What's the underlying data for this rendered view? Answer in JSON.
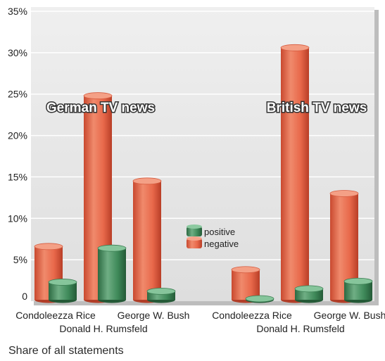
{
  "chart_data": {
    "type": "bar",
    "style": "3d-cylinder",
    "footer": "Share of all statements",
    "y_ticks": [
      "35%",
      "30%",
      "25%",
      "20%",
      "15%",
      "10%",
      "5%",
      "0"
    ],
    "ylim": [
      0,
      35
    ],
    "grid": true,
    "legend": {
      "placement": "center",
      "items": [
        "positive",
        "negative"
      ]
    },
    "colors": {
      "positive": "#3f8a5a",
      "negative": "#e8684a",
      "background": "#e6e6e6"
    },
    "groups": [
      {
        "title": "German TV news",
        "categories": [
          "Condoleezza Rice",
          "Donald H. Rumsfeld",
          "George W. Bush"
        ],
        "series": [
          {
            "name": "negative",
            "values": [
              6.6,
              24.8,
              14.5
            ]
          },
          {
            "name": "positive",
            "values": [
              2.3,
              6.4,
              1.2
            ]
          }
        ]
      },
      {
        "title": "British TV news",
        "categories": [
          "Condoleezza Rice",
          "Donald H. Rumsfeld",
          "George W. Bush"
        ],
        "series": [
          {
            "name": "negative",
            "values": [
              3.8,
              30.6,
              13.0
            ]
          },
          {
            "name": "positive",
            "values": [
              0.3,
              1.5,
              2.4
            ]
          }
        ]
      }
    ]
  }
}
